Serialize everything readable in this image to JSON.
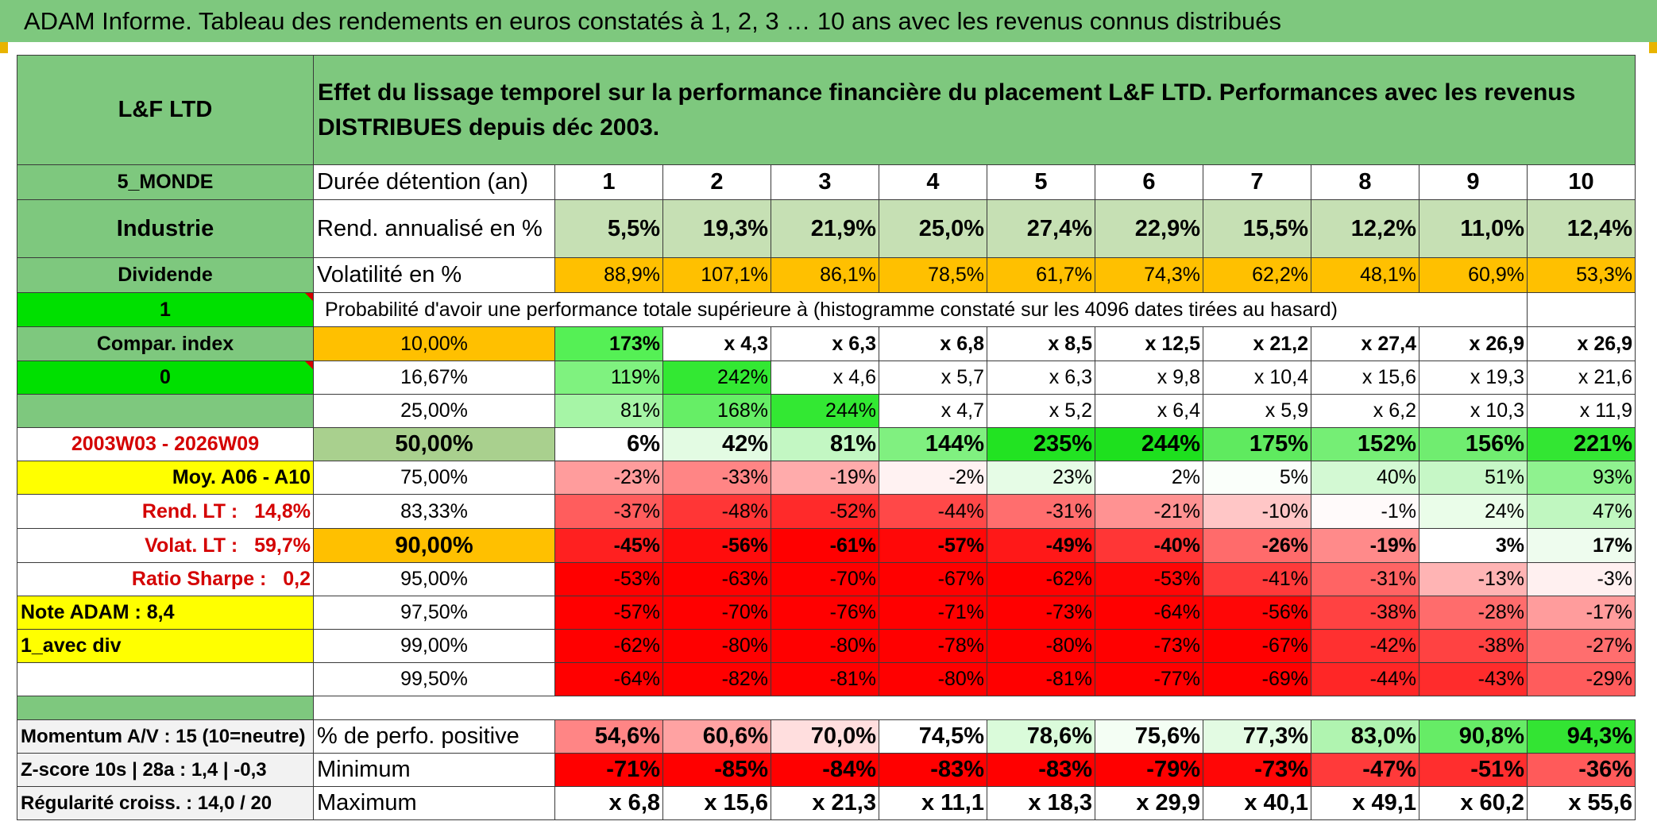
{
  "title": "ADAM Informe. Tableau des rendements en euros constatés à 1, 2, 3 … 10 ans avec les revenus connus distribués",
  "colors": {
    "header_green": "#7ec87e",
    "bright_green": "#00e000",
    "yellow": "#ffff00",
    "orange": "#ffc000",
    "red": "#ff0000",
    "light_green": "#c6e0b4",
    "label_red": "#d40000"
  },
  "left": {
    "fund_name": "L&F LTD",
    "zone": "5_MONDE",
    "sector": "Industrie",
    "dividend": "Dividende",
    "one": "1",
    "compar_index": "Compar. index",
    "zero": "0",
    "period": "2003W03 - 2026W09",
    "moy": "Moy. A06 - A10",
    "rend_lt_label": "Rend. LT :",
    "rend_lt_value": "14,8%",
    "volat_lt_label": "Volat. LT :",
    "volat_lt_value": "59,7%",
    "sharpe_label": "Ratio Sharpe :",
    "sharpe_value": "0,2",
    "note_adam": "Note ADAM : 8,4",
    "avec_div": "1_avec div",
    "momentum": "Momentum A/V : 15 (10=neutre)",
    "zscore": "Z-score 10s | 28a : 1,4 | -0,3",
    "regularite": "Régularité croiss. : 14,0 / 20"
  },
  "header_text": "Effet du lissage temporel sur la performance financière du placement L&F LTD. Performances avec les revenus DISTRIBUES depuis déc 2003.",
  "duration_label": "Durée détention (an)",
  "years": [
    "1",
    "2",
    "3",
    "4",
    "5",
    "6",
    "7",
    "8",
    "9",
    "10"
  ],
  "rend_label": "Rend. annualisé en %",
  "rend_values": [
    "5,5%",
    "19,3%",
    "21,9%",
    "25,0%",
    "27,4%",
    "22,9%",
    "15,5%",
    "12,2%",
    "11,0%",
    "12,4%"
  ],
  "vol_label": "Volatilité en %",
  "vol_values": [
    "88,9%",
    "107,1%",
    "86,1%",
    "78,5%",
    "61,7%",
    "74,3%",
    "62,2%",
    "48,1%",
    "60,9%",
    "53,3%"
  ],
  "prob_label": "Probabilité d'avoir une performance totale supérieure à (histogramme constaté sur les 4096 dates tirées au hasard)",
  "prob_rows": [
    {
      "pct": "10,00%",
      "values": [
        "173%",
        "x 4,3",
        "x 6,3",
        "x 6,8",
        "x 8,5",
        "x 12,5",
        "x 21,2",
        "x 27,4",
        "x 26,9",
        "x 26,9"
      ]
    },
    {
      "pct": "16,67%",
      "values": [
        "119%",
        "242%",
        "x 4,6",
        "x 5,7",
        "x 6,3",
        "x 9,8",
        "x 10,4",
        "x 15,6",
        "x 19,3",
        "x 21,6"
      ]
    },
    {
      "pct": "25,00%",
      "values": [
        "81%",
        "168%",
        "244%",
        "x 4,7",
        "x 5,2",
        "x 6,4",
        "x 5,9",
        "x 6,2",
        "x 10,3",
        "x 11,9"
      ]
    },
    {
      "pct": "50,00%",
      "values": [
        "6%",
        "42%",
        "81%",
        "144%",
        "235%",
        "244%",
        "175%",
        "152%",
        "156%",
        "221%"
      ]
    },
    {
      "pct": "75,00%",
      "values": [
        "-23%",
        "-33%",
        "-19%",
        "-2%",
        "23%",
        "2%",
        "5%",
        "40%",
        "51%",
        "93%"
      ]
    },
    {
      "pct": "83,33%",
      "values": [
        "-37%",
        "-48%",
        "-52%",
        "-44%",
        "-31%",
        "-21%",
        "-10%",
        "-1%",
        "24%",
        "47%"
      ]
    },
    {
      "pct": "90,00%",
      "values": [
        "-45%",
        "-56%",
        "-61%",
        "-57%",
        "-49%",
        "-40%",
        "-26%",
        "-19%",
        "3%",
        "17%"
      ]
    },
    {
      "pct": "95,00%",
      "values": [
        "-53%",
        "-63%",
        "-70%",
        "-67%",
        "-62%",
        "-53%",
        "-41%",
        "-31%",
        "-13%",
        "-3%"
      ]
    },
    {
      "pct": "97,50%",
      "values": [
        "-57%",
        "-70%",
        "-76%",
        "-71%",
        "-73%",
        "-64%",
        "-56%",
        "-38%",
        "-28%",
        "-17%"
      ]
    },
    {
      "pct": "99,00%",
      "values": [
        "-62%",
        "-80%",
        "-80%",
        "-78%",
        "-80%",
        "-73%",
        "-67%",
        "-42%",
        "-38%",
        "-27%"
      ]
    },
    {
      "pct": "99,50%",
      "values": [
        "-64%",
        "-82%",
        "-81%",
        "-80%",
        "-81%",
        "-77%",
        "-69%",
        "-44%",
        "-43%",
        "-29%"
      ]
    }
  ],
  "perf_pos_label": "% de perfo. positive",
  "perf_pos_values": [
    "54,6%",
    "60,6%",
    "70,0%",
    "74,5%",
    "78,6%",
    "75,6%",
    "77,3%",
    "83,0%",
    "90,8%",
    "94,3%"
  ],
  "min_label": "Minimum",
  "min_values": [
    "-71%",
    "-85%",
    "-84%",
    "-83%",
    "-83%",
    "-79%",
    "-73%",
    "-47%",
    "-51%",
    "-36%"
  ],
  "max_label": "Maximum",
  "max_values": [
    "x 6,8",
    "x 15,6",
    "x 21,3",
    "x 11,1",
    "x 18,3",
    "x 29,9",
    "x 40,1",
    "x 49,1",
    "x 60,2",
    "x 55,6"
  ]
}
